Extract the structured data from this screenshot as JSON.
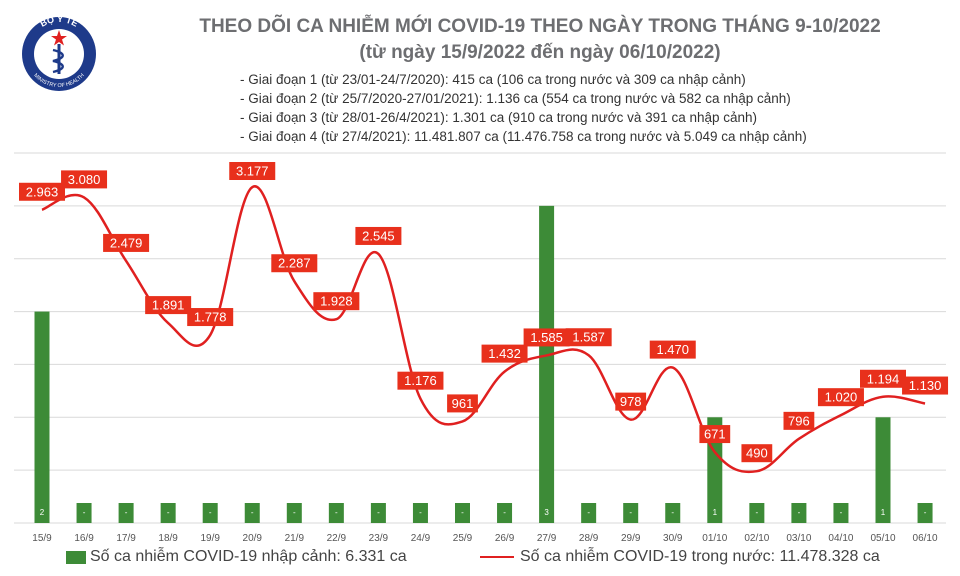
{
  "logo": {
    "top_text": "BỘ Y TẾ",
    "bottom_text": "MINISTRY OF HEALTH"
  },
  "header": {
    "title_line1": "THEO DÕI CA NHIỄM MỚI COVID-19 THEO NGÀY TRONG THÁNG 9-10/2022",
    "title_line2": "(từ ngày 15/9/2022 đến ngày 06/10/2022)"
  },
  "stages": [
    "- Giai đoạn 1 (từ 23/01-24/7/2020): 415 ca (106 ca trong nước và 309 ca nhập cảnh)",
    "- Giai đoạn 2 (từ 25/7/2020-27/01/2021): 1.136 ca (554 ca trong nước và 582 ca nhập cảnh)",
    "- Giai đoạn 3 (từ 28/01-26/4/2021): 1.301 ca (910 ca trong nước và 391 ca nhập cảnh)",
    "- Giai đoạn 4 (từ 27/4/2021): 11.481.807 ca (11.476.758 ca trong nước và 5.049 ca nhập cảnh)"
  ],
  "legend": {
    "bar_label": "Số ca nhiễm COVID-19 nhập cảnh: 6.331 ca",
    "line_label": "Số ca nhiễm COVID-19 trong nước: 11.478.328 ca"
  },
  "chart_data": {
    "type": "bar+line",
    "categories": [
      "15/9",
      "16/9",
      "17/9",
      "18/9",
      "19/9",
      "20/9",
      "21/9",
      "22/9",
      "23/9",
      "24/9",
      "25/9",
      "26/9",
      "27/9",
      "28/9",
      "29/9",
      "30/9",
      "01/10",
      "02/10",
      "03/10",
      "04/10",
      "05/10",
      "06/10"
    ],
    "series": [
      {
        "name": "Số ca nhiễm COVID-19 nhập cảnh: 6.331 ca",
        "type": "bar",
        "axis": "right",
        "color": "#3d8b37",
        "values": [
          2,
          0,
          0,
          0,
          0,
          0,
          0,
          0,
          0,
          0,
          0,
          0,
          3,
          0,
          0,
          0,
          1,
          0,
          0,
          0,
          1,
          0
        ],
        "labels": [
          "2",
          "-",
          "-",
          "-",
          "-",
          "-",
          "-",
          "-",
          "-",
          "-",
          "-",
          "-",
          "3",
          "-",
          "-",
          "-",
          "1",
          "-",
          "-",
          "-",
          "1",
          "-"
        ]
      },
      {
        "name": "Số ca nhiễm COVID-19 trong nước: 11.478.328 ca",
        "type": "line",
        "axis": "left",
        "color": "#e02020",
        "values": [
          2963,
          3080,
          2479,
          1891,
          1778,
          3177,
          2287,
          1928,
          2545,
          1176,
          961,
          1432,
          1585,
          1587,
          978,
          1470,
          671,
          490,
          796,
          1020,
          1194,
          1130
        ],
        "labels": [
          "2.963",
          "3.080",
          "2.479",
          "1.891",
          "1.778",
          "3.177",
          "2.287",
          "1.928",
          "2.545",
          "1.176",
          "961",
          "1.432",
          "1.585",
          "1.587",
          "978",
          "1.470",
          "671",
          "490",
          "796",
          "1.020",
          "1.194",
          "1.130"
        ]
      }
    ],
    "ylim_left": [
      0,
      3500
    ],
    "ylim_right": [
      0,
      3.5
    ],
    "grid": true
  }
}
